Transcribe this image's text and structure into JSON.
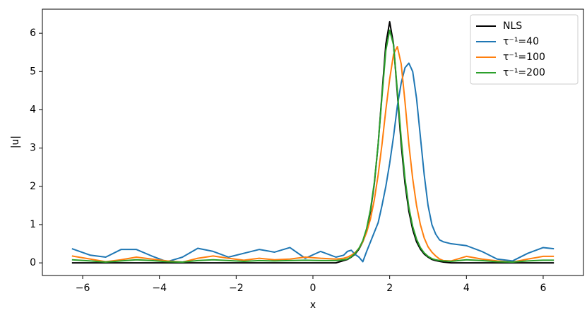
{
  "chart_data": {
    "type": "line",
    "xlabel": "x",
    "ylabel": "|u|",
    "x": [
      -6.28,
      -5.8,
      -5.4,
      -5.0,
      -4.6,
      -4.2,
      -3.8,
      -3.4,
      -3.0,
      -2.6,
      -2.2,
      -1.8,
      -1.4,
      -1.0,
      -0.6,
      -0.2,
      0.2,
      0.6,
      0.8,
      0.9,
      1.0,
      1.1,
      1.2,
      1.3,
      1.4,
      1.5,
      1.6,
      1.7,
      1.8,
      1.9,
      2.0,
      2.1,
      2.2,
      2.3,
      2.4,
      2.5,
      2.6,
      2.7,
      2.8,
      2.9,
      3.0,
      3.1,
      3.2,
      3.3,
      3.4,
      3.6,
      4.0,
      4.4,
      4.8,
      5.2,
      5.6,
      6.0,
      6.28
    ],
    "series": [
      {
        "name": "NLS",
        "color": "#000000",
        "values": [
          0,
          0,
          0,
          0,
          0,
          0,
          0,
          0,
          0,
          0,
          0,
          0,
          0,
          0,
          0,
          0,
          0,
          0,
          0.06,
          0.09,
          0.15,
          0.23,
          0.36,
          0.55,
          0.87,
          1.35,
          2.07,
          3.1,
          4.42,
          5.72,
          6.3,
          5.72,
          4.42,
          3.1,
          2.07,
          1.35,
          0.87,
          0.55,
          0.36,
          0.23,
          0.15,
          0.09,
          0.06,
          0.04,
          0.02,
          0,
          0,
          0,
          0,
          0,
          0,
          0,
          0
        ]
      },
      {
        "name": "τ⁻¹=40",
        "color": "#1f77b4",
        "values": [
          0.37,
          0.2,
          0.15,
          0.35,
          0.35,
          0.18,
          0.03,
          0.15,
          0.38,
          0.3,
          0.15,
          0.25,
          0.35,
          0.28,
          0.4,
          0.12,
          0.3,
          0.15,
          0.2,
          0.3,
          0.33,
          0.22,
          0.15,
          0.03,
          0.3,
          0.55,
          0.8,
          1.05,
          1.5,
          2.0,
          2.6,
          3.3,
          4.1,
          4.7,
          5.1,
          5.22,
          5.0,
          4.3,
          3.3,
          2.3,
          1.5,
          1.0,
          0.75,
          0.6,
          0.55,
          0.5,
          0.45,
          0.3,
          0.1,
          0.05,
          0.25,
          0.4,
          0.37
        ]
      },
      {
        "name": "τ⁻¹=100",
        "color": "#ff7f0e",
        "values": [
          0.18,
          0.1,
          0.03,
          0.08,
          0.15,
          0.1,
          0.05,
          0.02,
          0.12,
          0.18,
          0.12,
          0.07,
          0.12,
          0.08,
          0.1,
          0.15,
          0.12,
          0.1,
          0.12,
          0.15,
          0.2,
          0.27,
          0.38,
          0.55,
          0.8,
          1.15,
          1.65,
          2.3,
          3.1,
          4.0,
          4.8,
          5.45,
          5.65,
          5.2,
          4.2,
          3.1,
          2.2,
          1.5,
          1.0,
          0.65,
          0.42,
          0.28,
          0.18,
          0.1,
          0.06,
          0.05,
          0.17,
          0.1,
          0.05,
          0.02,
          0.1,
          0.17,
          0.17
        ]
      },
      {
        "name": "τ⁻¹=200",
        "color": "#2ca02c",
        "values": [
          0.08,
          0.05,
          0.02,
          0.05,
          0.08,
          0.06,
          0.03,
          0.02,
          0.06,
          0.08,
          0.06,
          0.04,
          0.06,
          0.05,
          0.06,
          0.07,
          0.06,
          0.06,
          0.08,
          0.1,
          0.16,
          0.25,
          0.38,
          0.58,
          0.9,
          1.4,
          2.1,
          3.1,
          4.35,
          5.55,
          6.08,
          5.7,
          4.5,
          3.25,
          2.2,
          1.45,
          0.95,
          0.62,
          0.4,
          0.26,
          0.17,
          0.11,
          0.08,
          0.06,
          0.05,
          0.04,
          0.08,
          0.06,
          0.03,
          0.02,
          0.05,
          0.07,
          0.07
        ]
      }
    ],
    "xlim": [
      -7.05,
      7.05
    ],
    "xticks": [
      {
        "value": -6,
        "label": "−6"
      },
      {
        "value": -4,
        "label": "−4"
      },
      {
        "value": -2,
        "label": "−2"
      },
      0,
      2,
      4,
      6
    ],
    "ylim": [
      -0.33,
      6.63
    ],
    "yticks": [
      0,
      1,
      2,
      3,
      4,
      5,
      6
    ],
    "grid": false,
    "legend": "upper right"
  }
}
